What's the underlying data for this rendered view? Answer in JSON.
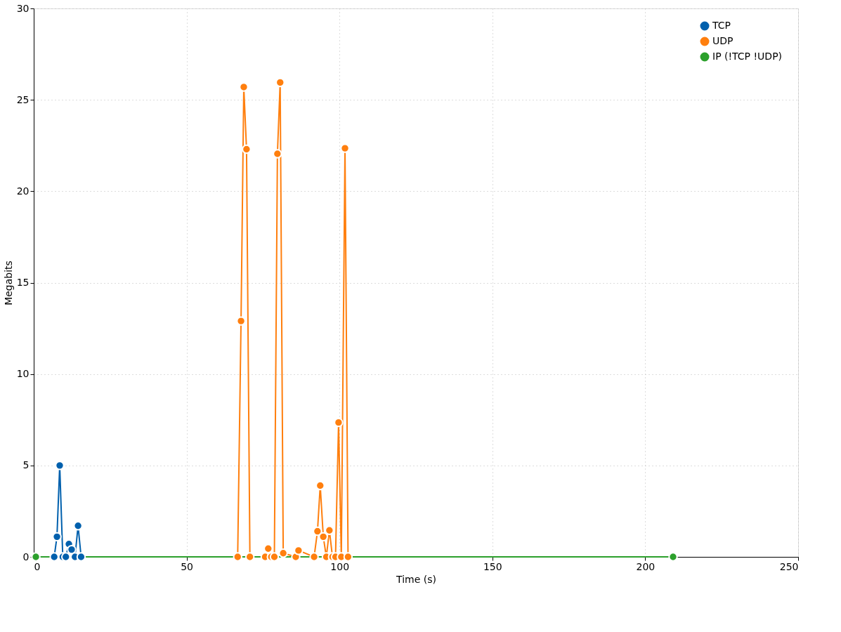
{
  "chart_data": {
    "type": "line",
    "xlabel": "Time (s)",
    "ylabel": "Megabits",
    "xlim": [
      0,
      250
    ],
    "xticks": [
      0,
      50,
      100,
      150,
      200,
      250
    ],
    "ylim": [
      0,
      30
    ],
    "yticks": [
      0,
      5,
      10,
      15,
      20,
      25,
      30
    ],
    "grid": true,
    "legend": "top right",
    "marker": "circle",
    "line_style": "solid",
    "series": [
      {
        "name": "TCP",
        "color": "#0060ad",
        "x": [
          6.7,
          7.6,
          8.5,
          9.5,
          10.5,
          11.5,
          12.4,
          13.5,
          14.5,
          15.5
        ],
        "values": [
          0,
          1.1,
          5.0,
          0,
          0,
          0.7,
          0.4,
          0,
          1.7,
          0
        ]
      },
      {
        "name": "UDP",
        "color": "#ff7f0e",
        "x": [
          66.7,
          67.8,
          68.7,
          69.6,
          70.7,
          75.7,
          76.7,
          77.7,
          78.7,
          79.7,
          80.6,
          81.6,
          85.7,
          86.6,
          91.7,
          92.8,
          93.7,
          94.7,
          95.7,
          96.7,
          97.7,
          98.7,
          99.7,
          100.6,
          101.8,
          102.8
        ],
        "values": [
          0,
          12.9,
          25.7,
          22.3,
          0,
          0,
          0.45,
          0,
          0,
          22.05,
          25.95,
          0.2,
          0,
          0.35,
          0,
          1.4,
          3.9,
          1.1,
          0,
          1.45,
          0,
          0,
          7.35,
          0,
          22.35,
          0
        ]
      },
      {
        "name": "IP (!TCP  !UDP)",
        "color": "#2ca02c",
        "x": [
          0.7,
          209.1
        ],
        "values": [
          0,
          0
        ]
      }
    ]
  }
}
